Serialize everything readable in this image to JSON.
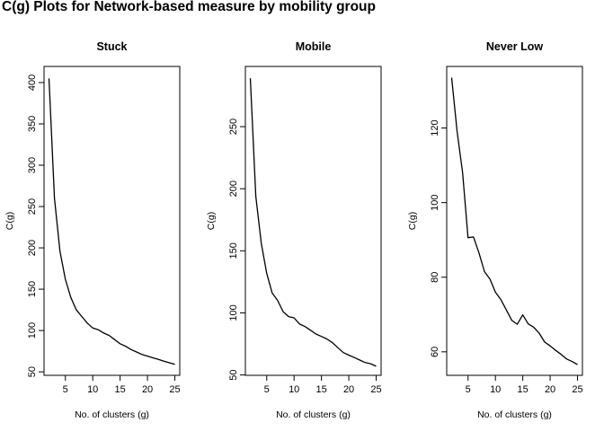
{
  "title": "C(g) Plots for Network-based measure by mobility group",
  "chart_data": [
    {
      "type": "line",
      "title": "Stuck",
      "xlabel": "No. of clusters (g)",
      "ylabel": "C(g)",
      "xlim": [
        1.1,
        25.9
      ],
      "ylim": [
        45.8,
        419.5
      ],
      "xticks": [
        5,
        10,
        15,
        20,
        25
      ],
      "yticks": [
        50,
        100,
        150,
        200,
        250,
        300,
        350,
        400
      ],
      "grid": false,
      "series": [
        {
          "x": [
            2,
            3,
            4,
            5,
            6,
            7,
            8,
            9,
            10,
            11,
            12,
            13,
            14,
            15,
            16,
            17,
            18,
            19,
            20,
            21,
            22,
            23,
            24,
            25
          ],
          "y": [
            405,
            260,
            196,
            162,
            140,
            125,
            117,
            109,
            103,
            101,
            97,
            94,
            89,
            84,
            81,
            77,
            74,
            71,
            69,
            67,
            65,
            63,
            61,
            59
          ]
        }
      ]
    },
    {
      "type": "line",
      "title": "Mobile",
      "xlabel": "No. of clusters (g)",
      "ylabel": "C(g)",
      "xlim": [
        1.1,
        25.9
      ],
      "ylim": [
        49.7,
        298.5
      ],
      "xticks": [
        5,
        10,
        15,
        20,
        25
      ],
      "yticks": [
        50,
        100,
        150,
        200,
        250
      ],
      "grid": false,
      "series": [
        {
          "x": [
            2,
            3,
            4,
            5,
            6,
            7,
            8,
            9,
            10,
            11,
            12,
            13,
            14,
            15,
            16,
            17,
            18,
            19,
            20,
            21,
            22,
            23,
            24,
            25
          ],
          "y": [
            289,
            194,
            156,
            132,
            116,
            110,
            101,
            97,
            96,
            91,
            89,
            86,
            83,
            81,
            79,
            76,
            72,
            68,
            66,
            64,
            62,
            60,
            59,
            57
          ]
        }
      ]
    },
    {
      "type": "line",
      "title": "Never Low",
      "xlabel": "No. of clusters (g)",
      "ylabel": "C(g)",
      "xlim": [
        1.1,
        25.9
      ],
      "ylim": [
        53.7,
        136.5
      ],
      "xticks": [
        5,
        10,
        15,
        20,
        25
      ],
      "yticks": [
        60,
        80,
        100,
        120
      ],
      "grid": false,
      "series": [
        {
          "x": [
            2,
            3,
            4,
            5,
            6,
            7,
            8,
            9,
            10,
            11,
            12,
            13,
            14,
            15,
            16,
            17,
            18,
            19,
            20,
            21,
            22,
            23,
            24,
            25
          ],
          "y": [
            133.5,
            119,
            108,
            90.6,
            90.8,
            86.5,
            81.5,
            79.5,
            76,
            74,
            71.2,
            68.4,
            67.4,
            69.9,
            67.5,
            66.6,
            65,
            62.6,
            61.6,
            60.4,
            59.3,
            58.1,
            57.4,
            56.6
          ]
        }
      ]
    }
  ]
}
